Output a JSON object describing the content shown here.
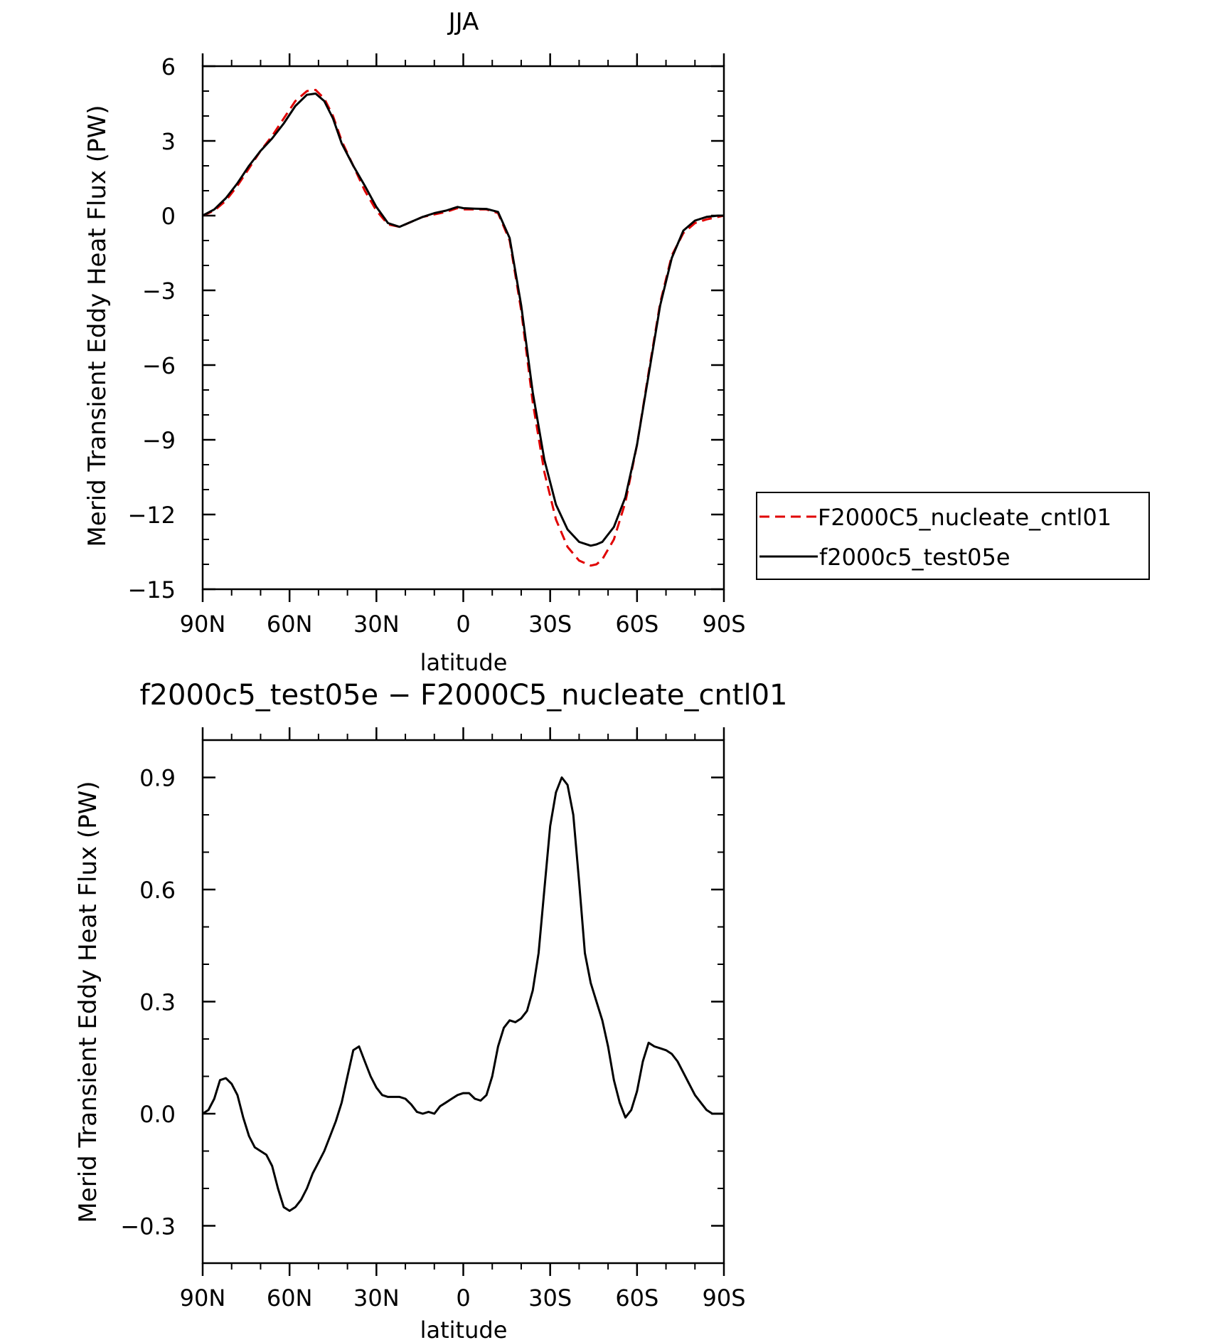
{
  "chart_data": [
    {
      "type": "line",
      "title": "JJA",
      "xlabel": "latitude",
      "ylabel": "Merid Transient Eddy Heat Flux (PW)",
      "xlim": [
        90,
        -90
      ],
      "ylim": [
        -15,
        6
      ],
      "yticks": [
        {
          "v": 6,
          "label": "6"
        },
        {
          "v": 3,
          "label": "3"
        },
        {
          "v": 0,
          "label": "0"
        },
        {
          "v": -3,
          "label": "−3"
        },
        {
          "v": -6,
          "label": "−6"
        },
        {
          "v": -9,
          "label": "−9"
        },
        {
          "v": -12,
          "label": "−12"
        },
        {
          "v": -15,
          "label": "−15"
        }
      ],
      "xticks": [
        {
          "v": 90,
          "label": "90N"
        },
        {
          "v": 60,
          "label": "60N"
        },
        {
          "v": 30,
          "label": "30N"
        },
        {
          "v": 0,
          "label": "0"
        },
        {
          "v": -30,
          "label": "30S"
        },
        {
          "v": -60,
          "label": "60S"
        },
        {
          "v": -90,
          "label": "90S"
        }
      ],
      "legend_position": "right",
      "series": [
        {
          "name": "F2000C5_nucleate_cntl01",
          "color": "#e00000",
          "dashed": true,
          "x": [
            90,
            86,
            82,
            78,
            74,
            70,
            66,
            62,
            58,
            54,
            51,
            48,
            45,
            42,
            38,
            34,
            30,
            26,
            22,
            18,
            14,
            10,
            6,
            2,
            0,
            -4,
            -8,
            -12,
            -16,
            -20,
            -24,
            -28,
            -32,
            -36,
            -40,
            -44,
            -46,
            -48,
            -52,
            -56,
            -60,
            -64,
            -68,
            -72,
            -76,
            -80,
            -84,
            -88,
            -90
          ],
          "y": [
            0.0,
            0.2,
            0.6,
            1.2,
            1.9,
            2.6,
            3.2,
            3.9,
            4.6,
            5.0,
            5.05,
            4.7,
            4.0,
            3.0,
            2.0,
            1.0,
            0.2,
            -0.35,
            -0.45,
            -0.25,
            -0.05,
            0.05,
            0.15,
            0.3,
            0.25,
            0.25,
            0.25,
            0.1,
            -1.0,
            -3.8,
            -7.5,
            -10.3,
            -12.2,
            -13.3,
            -13.85,
            -14.05,
            -14.0,
            -13.8,
            -13.0,
            -11.5,
            -9.2,
            -6.3,
            -3.5,
            -1.6,
            -0.7,
            -0.3,
            -0.15,
            -0.05,
            0.0
          ]
        },
        {
          "name": "f2000c5_test05e",
          "color": "#000000",
          "dashed": false,
          "x": [
            90,
            86,
            82,
            78,
            74,
            70,
            66,
            62,
            58,
            54,
            51,
            48,
            45,
            42,
            38,
            34,
            30,
            26,
            22,
            18,
            14,
            10,
            6,
            2,
            0,
            -4,
            -8,
            -12,
            -16,
            -20,
            -24,
            -28,
            -32,
            -36,
            -40,
            -44,
            -46,
            -48,
            -52,
            -56,
            -60,
            -64,
            -68,
            -72,
            -76,
            -80,
            -84,
            -88,
            -90
          ],
          "y": [
            0.0,
            0.25,
            0.7,
            1.3,
            2.0,
            2.6,
            3.1,
            3.7,
            4.4,
            4.85,
            4.9,
            4.6,
            3.9,
            2.9,
            2.0,
            1.2,
            0.35,
            -0.3,
            -0.45,
            -0.25,
            -0.05,
            0.1,
            0.2,
            0.35,
            0.3,
            0.28,
            0.27,
            0.15,
            -0.9,
            -3.6,
            -7.1,
            -9.8,
            -11.6,
            -12.6,
            -13.1,
            -13.25,
            -13.2,
            -13.1,
            -12.5,
            -11.3,
            -9.2,
            -6.4,
            -3.6,
            -1.7,
            -0.6,
            -0.2,
            -0.05,
            0.0,
            0.0
          ]
        }
      ]
    },
    {
      "type": "line",
      "title": "f2000c5_test05e − F2000C5_nucleate_cntl01",
      "xlabel": "latitude",
      "ylabel": "Merid Transient Eddy Heat Flux (PW)",
      "xlim": [
        90,
        -90
      ],
      "ylim": [
        -0.4,
        1.0
      ],
      "yticks": [
        {
          "v": 0.9,
          "label": "0.9"
        },
        {
          "v": 0.6,
          "label": "0.6"
        },
        {
          "v": 0.3,
          "label": "0.3"
        },
        {
          "v": 0.0,
          "label": "0.0"
        },
        {
          "v": -0.3,
          "label": "−0.3"
        }
      ],
      "xticks": [
        {
          "v": 90,
          "label": "90N"
        },
        {
          "v": 60,
          "label": "60N"
        },
        {
          "v": 30,
          "label": "30N"
        },
        {
          "v": 0,
          "label": "0"
        },
        {
          "v": -30,
          "label": "30S"
        },
        {
          "v": -60,
          "label": "60S"
        },
        {
          "v": -90,
          "label": "90S"
        }
      ],
      "series": [
        {
          "color": "#000000",
          "dashed": false,
          "x": [
            90,
            88,
            86,
            84,
            82,
            80,
            78,
            76,
            74,
            72,
            70,
            68,
            66,
            64,
            62,
            60,
            58,
            56,
            54,
            52,
            50,
            48,
            46,
            44,
            42,
            40,
            38,
            36,
            34,
            32,
            30,
            28,
            26,
            24,
            22,
            20,
            18,
            16,
            14,
            12,
            10,
            8,
            6,
            4,
            2,
            0,
            -2,
            -4,
            -6,
            -8,
            -10,
            -12,
            -14,
            -16,
            -18,
            -20,
            -22,
            -24,
            -26,
            -28,
            -30,
            -32,
            -34,
            -36,
            -38,
            -40,
            -42,
            -44,
            -46,
            -48,
            -50,
            -52,
            -54,
            -56,
            -58,
            -60,
            -62,
            -64,
            -66,
            -68,
            -70,
            -72,
            -74,
            -76,
            -78,
            -80,
            -82,
            -84,
            -86,
            -88,
            -90
          ],
          "y": [
            0.0,
            0.01,
            0.04,
            0.09,
            0.095,
            0.08,
            0.05,
            -0.01,
            -0.06,
            -0.09,
            -0.1,
            -0.11,
            -0.14,
            -0.2,
            -0.25,
            -0.26,
            -0.25,
            -0.23,
            -0.2,
            -0.16,
            -0.13,
            -0.1,
            -0.06,
            -0.02,
            0.03,
            0.1,
            0.17,
            0.18,
            0.14,
            0.1,
            0.07,
            0.05,
            0.045,
            0.045,
            0.045,
            0.04,
            0.025,
            0.005,
            0.0,
            0.005,
            0.0,
            0.02,
            0.03,
            0.04,
            0.05,
            0.055,
            0.055,
            0.04,
            0.035,
            0.05,
            0.1,
            0.18,
            0.23,
            0.25,
            0.245,
            0.255,
            0.275,
            0.33,
            0.43,
            0.6,
            0.77,
            0.86,
            0.9,
            0.88,
            0.8,
            0.62,
            0.43,
            0.35,
            0.3,
            0.25,
            0.18,
            0.09,
            0.03,
            -0.01,
            0.01,
            0.06,
            0.14,
            0.19,
            0.18,
            0.175,
            0.17,
            0.16,
            0.14,
            0.11,
            0.08,
            0.05,
            0.03,
            0.01,
            0.0,
            0.0,
            0.0
          ]
        }
      ]
    }
  ]
}
